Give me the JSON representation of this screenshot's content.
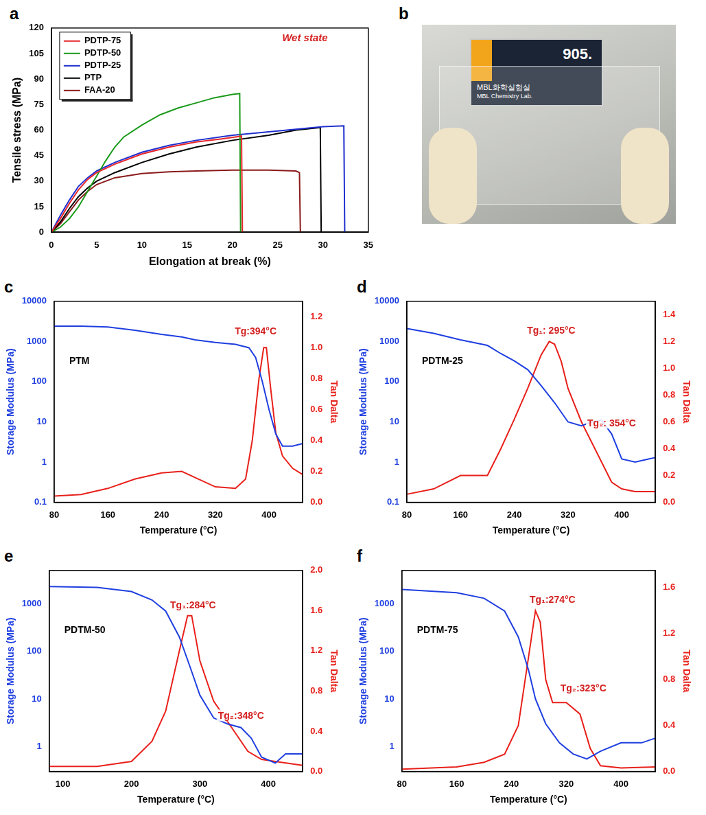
{
  "chart_data": [
    {
      "panel_label": "a",
      "type": "line",
      "xlabel": "Elongation at break (%)",
      "ylabel": "Tensile stress (MPa)",
      "xlim": [
        0,
        35
      ],
      "xticks": [
        0,
        5,
        10,
        15,
        20,
        25,
        30,
        35
      ],
      "ylim": [
        0,
        120
      ],
      "yticks": [
        0,
        15,
        30,
        45,
        60,
        75,
        90,
        105,
        120
      ],
      "grid": false,
      "legend": "upper left",
      "annotations": [
        {
          "text": "Wet state",
          "x": 28,
          "y": 111
        }
      ],
      "series": [
        {
          "name": "PDTP-75",
          "color": "#e8262a",
          "x": [
            0,
            1,
            2,
            3,
            4,
            5,
            7,
            10,
            13,
            16,
            19,
            21,
            21.1
          ],
          "values": [
            0,
            8,
            17,
            25,
            31,
            35,
            40,
            46,
            50,
            53,
            55,
            56.5,
            0
          ]
        },
        {
          "name": "PDTP-50",
          "color": "#1a9a1a",
          "x": [
            0,
            1,
            2,
            3,
            4,
            5,
            6,
            7,
            8,
            10,
            12,
            14,
            16,
            18,
            20,
            20.8,
            20.9
          ],
          "values": [
            0,
            3,
            8,
            15,
            24,
            33,
            42,
            50,
            56,
            63,
            69,
            73,
            76,
            79,
            81,
            81.5,
            0
          ]
        },
        {
          "name": "PDTP-25",
          "color": "#1f2fcf",
          "x": [
            0,
            1,
            2,
            3,
            4,
            5,
            7,
            10,
            13,
            16,
            20,
            24,
            28,
            30,
            32.3,
            32.4
          ],
          "values": [
            0,
            10,
            19,
            27,
            32,
            36,
            41,
            47,
            51,
            54,
            57,
            59,
            61,
            62,
            62.5,
            0
          ]
        },
        {
          "name": "PTP",
          "color": "#000000",
          "x": [
            0,
            1,
            2,
            3,
            4,
            5,
            7,
            10,
            13,
            16,
            20,
            24,
            27,
            29.7,
            29.8
          ],
          "values": [
            0,
            6,
            14,
            21,
            26,
            30,
            35,
            41,
            46,
            50,
            54,
            57,
            60,
            61.5,
            0
          ]
        },
        {
          "name": "FAA-20",
          "color": "#8b1a1a",
          "x": [
            0,
            1,
            2,
            3,
            4,
            5,
            7,
            10,
            13,
            16,
            20,
            24,
            27,
            27.4,
            27.5
          ],
          "values": [
            0,
            5,
            12,
            19,
            24,
            28,
            32,
            34.5,
            35.5,
            36,
            36.5,
            36.5,
            36,
            35,
            0
          ]
        }
      ]
    },
    {
      "panel_label": "c",
      "type": "line",
      "subtitle": "PTM",
      "xlabel": "Temperature (°C)",
      "ylabel": "Storage Modulus (MPa)",
      "y2label": "Tan Dalta",
      "log": "y",
      "grid": false,
      "xlim": [
        80,
        450
      ],
      "xticks": [
        80,
        160,
        240,
        320,
        400
      ],
      "ylim": [
        0.1,
        10000
      ],
      "yticks": [
        0.1,
        1,
        10,
        100,
        1000,
        10000
      ],
      "y2lim": [
        0,
        1.3
      ],
      "y2ticks": [
        {
          "value": 0,
          "label": "0.0"
        },
        0.2,
        0.4,
        0.6,
        0.8,
        {
          "value": 1,
          "label": "1.0"
        },
        1.2
      ],
      "annotations": [
        {
          "text": "Tg:394°C",
          "x": 380,
          "y": 1.07,
          "axis": "y2"
        }
      ],
      "series": [
        {
          "color": "#1f3fe0",
          "x": [
            80,
            120,
            160,
            200,
            240,
            270,
            290,
            320,
            350,
            370,
            380,
            390,
            400,
            410,
            420,
            435,
            450
          ],
          "values": [
            2400,
            2400,
            2300,
            1900,
            1500,
            1300,
            1100,
            950,
            850,
            700,
            400,
            100,
            20,
            5,
            2.5,
            2.5,
            2.9
          ]
        },
        {
          "color": "#e8201a",
          "axis": "y2",
          "x": [
            80,
            120,
            160,
            200,
            240,
            270,
            290,
            320,
            350,
            365,
            375,
            385,
            392,
            396,
            402,
            410,
            420,
            435,
            450
          ],
          "values": [
            0.04,
            0.05,
            0.09,
            0.15,
            0.19,
            0.2,
            0.16,
            0.1,
            0.09,
            0.15,
            0.4,
            0.8,
            1.0,
            1.0,
            0.75,
            0.45,
            0.3,
            0.22,
            0.18
          ]
        }
      ]
    },
    {
      "panel_label": "d",
      "type": "line",
      "subtitle": "PDTM-25",
      "xlabel": "Temperature (°C)",
      "ylabel": "Storage Modulus (MPa)",
      "y2label": "Tan Dalta",
      "log": "y",
      "grid": false,
      "xlim": [
        80,
        450
      ],
      "xticks": [
        80,
        160,
        240,
        320,
        400
      ],
      "ylim": [
        0.1,
        10000
      ],
      "yticks": [
        0.1,
        1,
        10,
        100,
        1000,
        10000
      ],
      "y2lim": [
        0,
        1.5
      ],
      "y2ticks": [
        {
          "value": 0,
          "label": "0.0"
        },
        0.2,
        0.4,
        0.6,
        0.8,
        {
          "value": 1,
          "label": "1.0"
        },
        1.2,
        1.4
      ],
      "annotations": [
        {
          "text": "Tg₁: 295°C",
          "x": 295,
          "y": 1.24,
          "axis": "y2"
        },
        {
          "text": "Tg₂: 354°C",
          "x": 385,
          "y": 0.55,
          "axis": "y2"
        }
      ],
      "series": [
        {
          "color": "#1f3fe0",
          "x": [
            80,
            120,
            160,
            200,
            220,
            240,
            260,
            280,
            300,
            320,
            340,
            355,
            370,
            385,
            400,
            420,
            440,
            450
          ],
          "values": [
            2100,
            1600,
            1100,
            800,
            500,
            330,
            200,
            80,
            30,
            10,
            8,
            10,
            11,
            5,
            1.2,
            1,
            1.2,
            1.3
          ]
        },
        {
          "color": "#e8201a",
          "axis": "y2",
          "x": [
            80,
            120,
            160,
            200,
            220,
            240,
            260,
            280,
            292,
            300,
            310,
            320,
            340,
            355,
            370,
            385,
            400,
            420,
            450
          ],
          "values": [
            0.06,
            0.1,
            0.2,
            0.2,
            0.4,
            0.62,
            0.85,
            1.1,
            1.2,
            1.18,
            1.05,
            0.85,
            0.6,
            0.45,
            0.3,
            0.15,
            0.1,
            0.08,
            0.08
          ]
        }
      ]
    },
    {
      "panel_label": "e",
      "type": "line",
      "subtitle": "PDTM-50",
      "xlabel": "Temperature (°C)",
      "ylabel": "Storage Modulus (MPa)",
      "y2label": "Tan Dalta",
      "log": "y",
      "grid": false,
      "xlim": [
        80,
        450
      ],
      "xticks": [
        100,
        200,
        300,
        400
      ],
      "ylim": [
        0.3,
        5000
      ],
      "yticks": [
        1,
        10,
        100,
        1000
      ],
      "y2lim": [
        0,
        2
      ],
      "y2ticks": [
        {
          "value": 0,
          "label": "0.0"
        },
        0.4,
        0.8,
        1.2,
        1.6,
        {
          "value": 2,
          "label": "2.0"
        }
      ],
      "annotations": [
        {
          "text": "Tg₁:284°C",
          "x": 290,
          "y": 1.6,
          "axis": "y2"
        },
        {
          "text": "Tg₂:348°C",
          "x": 360,
          "y": 0.5,
          "axis": "y2"
        }
      ],
      "series": [
        {
          "color": "#1f3fe0",
          "x": [
            80,
            150,
            200,
            230,
            250,
            270,
            285,
            300,
            320,
            340,
            360,
            375,
            390,
            410,
            425,
            450
          ],
          "values": [
            2300,
            2200,
            1800,
            1200,
            700,
            200,
            50,
            12,
            4,
            3,
            2.5,
            1.5,
            0.6,
            0.45,
            0.7,
            0.7
          ]
        },
        {
          "color": "#e8201a",
          "axis": "y2",
          "x": [
            80,
            150,
            200,
            230,
            250,
            270,
            282,
            288,
            300,
            320,
            340,
            350,
            370,
            390,
            410,
            450
          ],
          "values": [
            0.05,
            0.05,
            0.1,
            0.3,
            0.6,
            1.2,
            1.55,
            1.55,
            1.1,
            0.7,
            0.5,
            0.4,
            0.2,
            0.12,
            0.1,
            0.06
          ]
        }
      ]
    },
    {
      "panel_label": "f",
      "type": "line",
      "subtitle": "PDTM-75",
      "xlabel": "Temperature (°C)",
      "ylabel": "Storage Modulus (MPa)",
      "y2label": "Tan Dalta",
      "log": "y",
      "grid": false,
      "xlim": [
        80,
        450
      ],
      "xticks": [
        80,
        160,
        240,
        320,
        400
      ],
      "ylim": [
        0.3,
        5000
      ],
      "yticks": [
        1,
        10,
        100,
        1000
      ],
      "y2lim": [
        0,
        1.75
      ],
      "y2ticks": [
        {
          "value": 0,
          "label": "0.0"
        },
        0.4,
        0.8,
        1.2,
        1.6
      ],
      "annotations": [
        {
          "text": "Tg₁:274°C",
          "x": 300,
          "y": 1.45,
          "axis": "y2"
        },
        {
          "text": "Tg₂:323°C",
          "x": 345,
          "y": 0.68,
          "axis": "y2"
        }
      ],
      "series": [
        {
          "color": "#1f3fe0",
          "x": [
            80,
            160,
            200,
            230,
            250,
            265,
            275,
            290,
            310,
            330,
            350,
            370,
            400,
            430,
            450
          ],
          "values": [
            2000,
            1700,
            1300,
            700,
            200,
            40,
            10,
            3,
            1.2,
            0.7,
            0.55,
            0.8,
            1.2,
            1.2,
            1.5
          ]
        },
        {
          "color": "#e8201a",
          "axis": "y2",
          "x": [
            80,
            160,
            200,
            230,
            250,
            265,
            275,
            282,
            290,
            300,
            320,
            340,
            355,
            370,
            400,
            450
          ],
          "values": [
            0.02,
            0.04,
            0.08,
            0.15,
            0.4,
            1.0,
            1.4,
            1.3,
            0.8,
            0.6,
            0.6,
            0.5,
            0.2,
            0.05,
            0.03,
            0.04
          ]
        }
      ]
    }
  ],
  "photo": {
    "panel_label": "b",
    "sign": [
      "905.",
      "MBL화학실험실",
      "MBL Chemistry Lab."
    ]
  }
}
